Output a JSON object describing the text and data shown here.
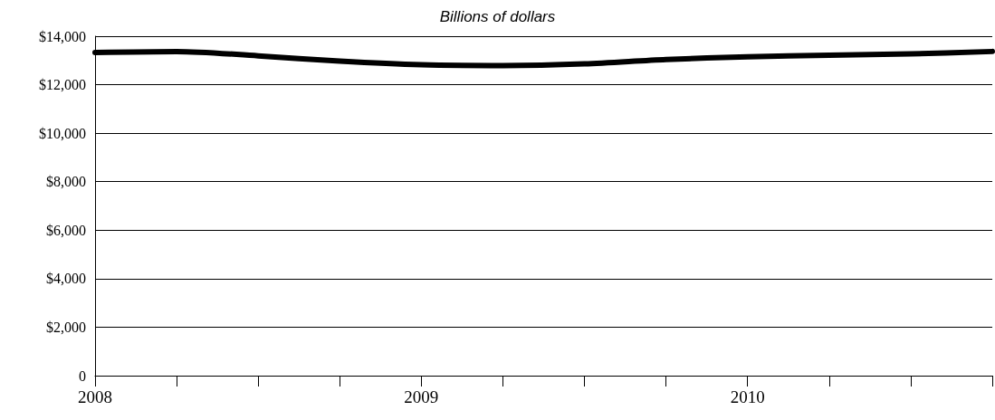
{
  "chart_data": {
    "type": "line",
    "title": "Billions of dollars",
    "categories": [
      "2008",
      null,
      null,
      null,
      "2009",
      null,
      null,
      null,
      "2010",
      null,
      null,
      null
    ],
    "series": [
      {
        "color": "#000000",
        "values": [
          13330,
          13370,
          13190,
          12970,
          12820,
          12790,
          12860,
          13040,
          13150,
          13220,
          13270,
          13370
        ]
      }
    ],
    "ylim": [
      0,
      14000
    ],
    "yticks": [
      0,
      {
        "value": 2000,
        "label": "$2,000"
      },
      {
        "value": 4000,
        "label": "$4,000"
      },
      {
        "value": 6000,
        "label": "$6,000"
      },
      {
        "value": 8000,
        "label": "$8,000"
      },
      {
        "value": 10000,
        "label": "$10,000"
      },
      {
        "value": 12000,
        "label": "$12,000"
      },
      {
        "value": 14000,
        "label": "$14,000"
      }
    ],
    "grid": "y",
    "marker": "none",
    "line_style": "solid"
  }
}
